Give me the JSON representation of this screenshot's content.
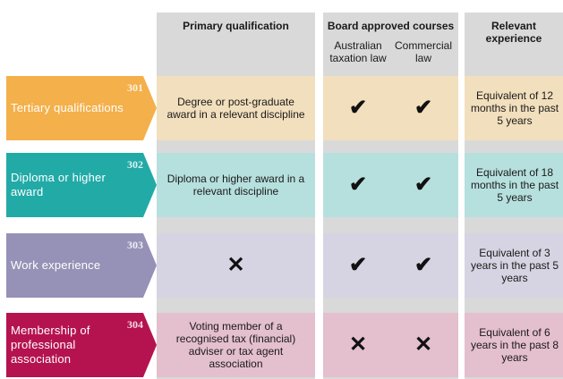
{
  "headers": {
    "primary": "Primary qualification",
    "board": "Board approved courses",
    "australian": "Australian taxation law",
    "commercial": "Commercial law",
    "relevant": "Relevant experience"
  },
  "rows": [
    {
      "number": "301",
      "label": "Tertiary  qualifications",
      "primary": "Degree or post-graduate award in a relevant discipline",
      "australian": "✔",
      "commercial": "✔",
      "experience": "Equivalent of 12 months in the past 5 years",
      "color": "#f4b04a",
      "tint": "#f2dfbd"
    },
    {
      "number": "302",
      "label": "Diploma or higher award",
      "primary": "Diploma or higher award in a relevant discipline",
      "australian": "✔",
      "commercial": "✔",
      "experience": "Equivalent of 18 months in the past 5 years",
      "color": "#22aaa7",
      "tint": "#b6e0de"
    },
    {
      "number": "303",
      "label": "Work experience",
      "primary": "✕",
      "australian": "✔",
      "commercial": "✔",
      "experience": "Equivalent of 3 years in the past 5 years",
      "color": "#9691b6",
      "tint": "#d6d4e2"
    },
    {
      "number": "304",
      "label": "Membership  of professional  association",
      "primary": "Voting member of a recognised tax (financial) adviser or tax agent association",
      "australian": "✕",
      "commercial": "✕",
      "experience": "Equivalent of 6 years in the past 8 years",
      "color": "#b5134f",
      "tint": "#e4bfcd"
    }
  ]
}
